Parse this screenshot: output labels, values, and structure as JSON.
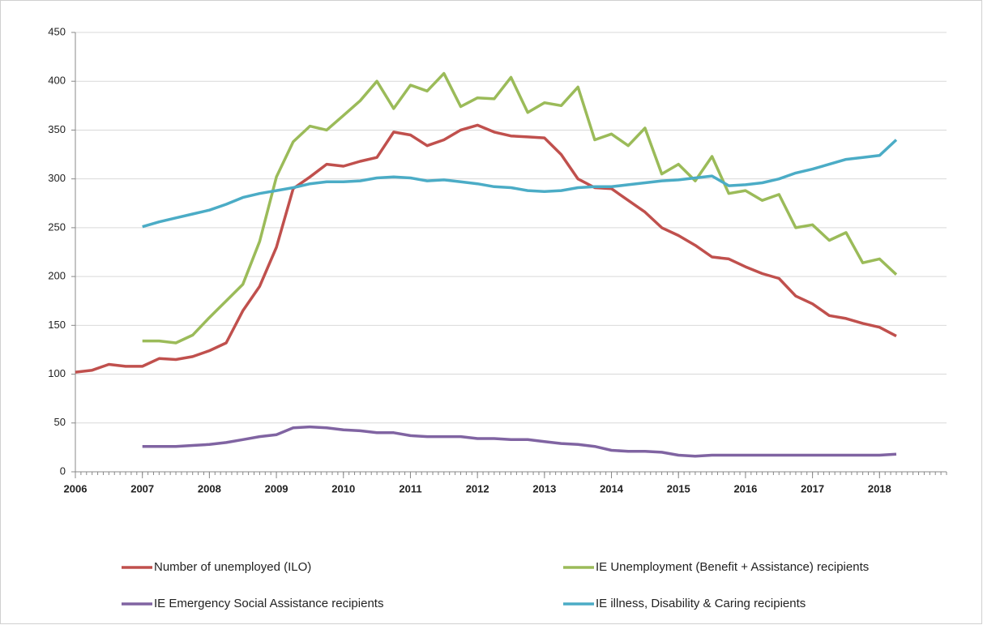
{
  "chart_data": {
    "type": "line",
    "x": [
      2006,
      2006.25,
      2006.5,
      2006.75,
      2007,
      2007.25,
      2007.5,
      2007.75,
      2008,
      2008.25,
      2008.5,
      2008.75,
      2009,
      2009.25,
      2009.5,
      2009.75,
      2010,
      2010.25,
      2010.5,
      2010.75,
      2011,
      2011.25,
      2011.5,
      2011.75,
      2012,
      2012.25,
      2012.5,
      2012.75,
      2013,
      2013.25,
      2013.5,
      2013.75,
      2014,
      2014.25,
      2014.5,
      2014.75,
      2015,
      2015.25,
      2015.5,
      2015.75,
      2016,
      2016.25,
      2016.5,
      2016.75,
      2017,
      2017.25,
      2017.5,
      2017.75,
      2018,
      2018.25
    ],
    "series": [
      {
        "name": "Number of unemployed (ILO)",
        "color": "#c0504d",
        "values": [
          102,
          104,
          110,
          108,
          108,
          116,
          115,
          118,
          124,
          132,
          165,
          190,
          230,
          290,
          302,
          315,
          313,
          318,
          322,
          348,
          345,
          334,
          340,
          350,
          355,
          348,
          344,
          343,
          342,
          325,
          300,
          291,
          290,
          278,
          266,
          250,
          242,
          232,
          220,
          218,
          210,
          203,
          198,
          180,
          172,
          160,
          157,
          152,
          148,
          139
        ]
      },
      {
        "name": "IE Unemployment (Benefit + Assistance) recipients",
        "color": "#9bbb59",
        "values": [
          null,
          null,
          null,
          null,
          134,
          134,
          132,
          140,
          158,
          175,
          192,
          236,
          302,
          338,
          354,
          350,
          365,
          380,
          400,
          372,
          396,
          390,
          408,
          374,
          383,
          382,
          404,
          368,
          378,
          375,
          394,
          340,
          346,
          334,
          352,
          305,
          315,
          298,
          323,
          285,
          288,
          278,
          284,
          250,
          253,
          237,
          245,
          214,
          218,
          202
        ]
      },
      {
        "name": "IE Emergency Social Assistance recipients",
        "color": "#8064a2",
        "values": [
          null,
          null,
          null,
          null,
          26,
          26,
          26,
          27,
          28,
          30,
          33,
          36,
          38,
          45,
          46,
          45,
          43,
          42,
          40,
          40,
          37,
          36,
          36,
          36,
          34,
          34,
          33,
          33,
          31,
          29,
          28,
          26,
          22,
          21,
          21,
          20,
          17,
          16,
          17,
          17,
          17,
          17,
          17,
          17,
          17,
          17,
          17,
          17,
          17,
          18
        ]
      },
      {
        "name": "IE illness, Disability & Caring recipients",
        "color": "#4bacc6",
        "values": [
          null,
          null,
          null,
          null,
          251,
          256,
          260,
          264,
          268,
          274,
          281,
          285,
          288,
          291,
          295,
          297,
          297,
          298,
          301,
          302,
          301,
          298,
          299,
          297,
          295,
          292,
          291,
          288,
          287,
          288,
          291,
          292,
          292,
          294,
          296,
          298,
          299,
          301,
          303,
          293,
          294,
          296,
          300,
          306,
          310,
          315,
          320,
          322,
          324,
          340
        ]
      }
    ],
    "xlim": [
      2006,
      2019
    ],
    "xticks": [
      2006,
      2007,
      2008,
      2009,
      2010,
      2011,
      2012,
      2013,
      2014,
      2015,
      2016,
      2017,
      2018
    ],
    "ylim": [
      0,
      450
    ],
    "yticks": [
      0,
      50,
      100,
      150,
      200,
      250,
      300,
      350,
      400,
      450
    ],
    "grid": true,
    "legend": "bottom"
  }
}
